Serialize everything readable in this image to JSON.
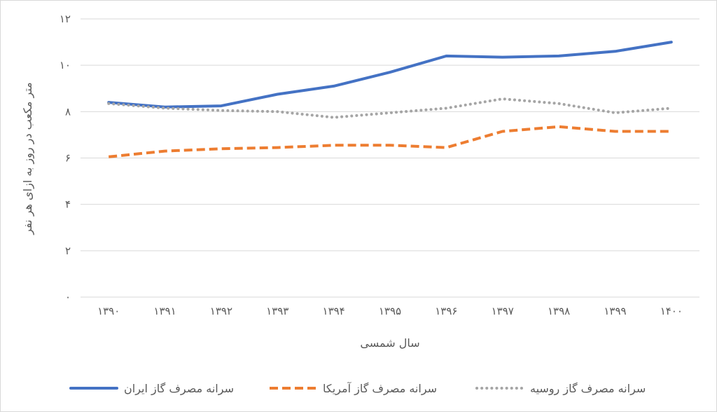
{
  "chart_data": {
    "type": "line",
    "xlabel": "سال شمسی",
    "ylabel": "متر مکعب در روز به ازای هر نفر",
    "categories": [
      "۱۳۹۰",
      "۱۳۹۱",
      "۱۳۹۲",
      "۱۳۹۳",
      "۱۳۹۴",
      "۱۳۹۵",
      "۱۳۹۶",
      "۱۳۹۷",
      "۱۳۹۸",
      "۱۳۹۹",
      "۱۴۰۰"
    ],
    "ylim": [
      0,
      12
    ],
    "yticks": [
      {
        "value": 0,
        "label": "۰"
      },
      {
        "value": 2,
        "label": "۲"
      },
      {
        "value": 4,
        "label": "۴"
      },
      {
        "value": 6,
        "label": "۶"
      },
      {
        "value": 8,
        "label": "۸"
      },
      {
        "value": 10,
        "label": "۱۰"
      },
      {
        "value": 12,
        "label": "۱۲"
      }
    ],
    "grid": true,
    "legend_position": "bottom",
    "series": [
      {
        "name": "سرانه مصرف گاز ایران",
        "color": "#4472c4",
        "style": "solid",
        "values": [
          8.4,
          8.2,
          8.25,
          8.75,
          9.1,
          9.7,
          10.4,
          10.35,
          10.4,
          10.6,
          11.0
        ]
      },
      {
        "name": "سرانه مصرف گاز آمریکا",
        "color": "#ed7d31",
        "style": "dashed",
        "values": [
          6.05,
          6.3,
          6.4,
          6.45,
          6.55,
          6.55,
          6.45,
          7.15,
          7.35,
          7.15,
          7.15
        ]
      },
      {
        "name": "سرانه مصرف گاز روسیه",
        "color": "#a5a5a5",
        "style": "dotted",
        "values": [
          8.35,
          8.15,
          8.05,
          8.0,
          7.75,
          7.95,
          8.15,
          8.55,
          8.35,
          7.95,
          8.15
        ]
      }
    ]
  }
}
